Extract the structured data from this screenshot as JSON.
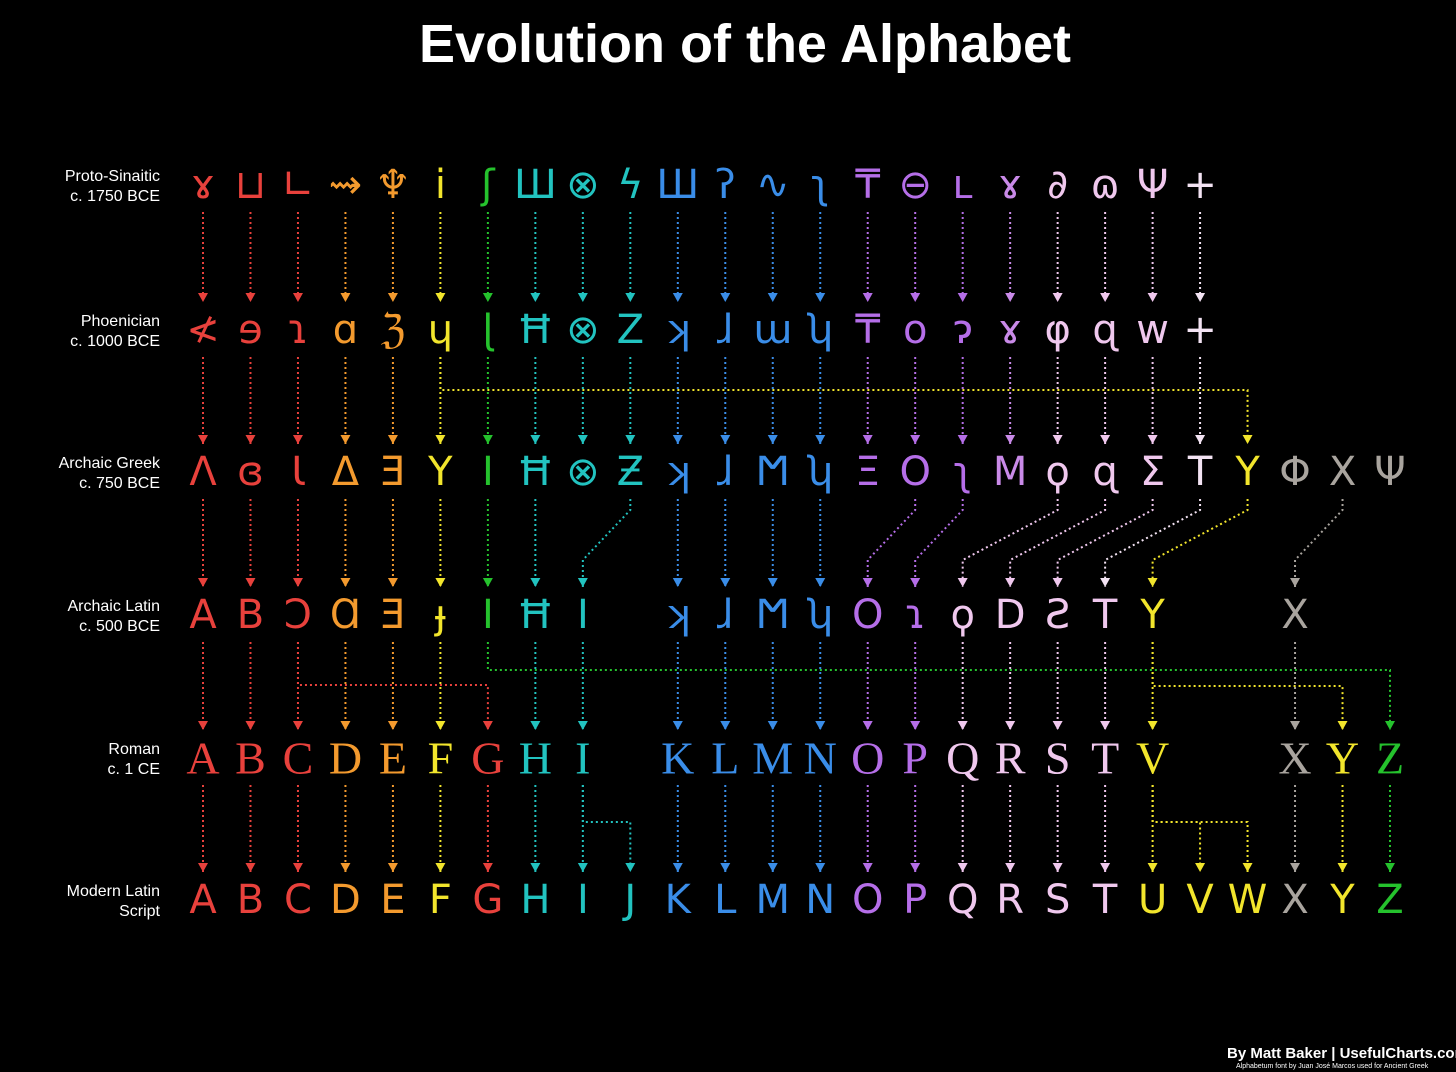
{
  "title": "Evolution of the Alphabet",
  "rows": [
    {
      "label": "Proto-Sinaitic",
      "period": "c. 1750 BCE",
      "glyphs": [
        "ɤ",
        "⊔",
        "∟",
        "⇝",
        "♆",
        "ⅰ",
        "ʃ",
        "Ш",
        "⊗",
        "ϟ",
        "Ш",
        "ʔ",
        "∿",
        "ʅ",
        "₸",
        "⊖",
        "ʟ",
        "ɤ",
        "∂",
        "ɷ",
        "Ψ",
        "+",
        null,
        null,
        null,
        null
      ],
      "colors": [
        "#e8413c",
        "#e8413c",
        "#e8413c",
        "#f39a2e",
        "#f39a2e",
        "#f2e52c",
        "#25c22d",
        "#22c3c0",
        "#22c3c0",
        "#22c3c0",
        "#3a8de8",
        "#3a8de8",
        "#3a8de8",
        "#3a8de8",
        "#b56ee8",
        "#b56ee8",
        "#b56ee8",
        "#c98ae8",
        "#f0c8ee",
        "#f0c8ee",
        "#f0c8ee",
        "#f3e3f3",
        null,
        null,
        null,
        null
      ]
    },
    {
      "label": "Phoenician",
      "period": "c. 1000 BCE",
      "glyphs": [
        "≮",
        "ɘ",
        "ɿ",
        "ɑ",
        "ℨ",
        "ɥ",
        "ɭ",
        "Ħ",
        "⊗",
        "Z",
        "ʞ",
        "ɺ",
        "ɯ",
        "ʮ",
        "₸",
        "o",
        "ɂ",
        "ɤ",
        "φ",
        "ɋ",
        "w",
        "+",
        null,
        null,
        null,
        null
      ],
      "colors": [
        "#e8413c",
        "#e8413c",
        "#e8413c",
        "#f39a2e",
        "#f39a2e",
        "#f2e52c",
        "#25c22d",
        "#22c3c0",
        "#22c3c0",
        "#22c3c0",
        "#3a8de8",
        "#3a8de8",
        "#3a8de8",
        "#3a8de8",
        "#b56ee8",
        "#b56ee8",
        "#b56ee8",
        "#c98ae8",
        "#f0c8ee",
        "#f0c8ee",
        "#f0c8ee",
        "#f3e3f3",
        null,
        null,
        null,
        null
      ]
    },
    {
      "label": "Archaic Greek",
      "period": "c. 750 BCE",
      "glyphs": [
        "Λ",
        "ɞ",
        "Ɩ",
        "Δ",
        "Ǝ",
        "Υ",
        "Ι",
        "Ħ",
        "⊗",
        "Ƶ",
        "ʞ",
        "ɺ",
        "Ϻ",
        "ʮ",
        "Ξ",
        "O",
        "ʅ",
        "Μ",
        "ϙ",
        "ɋ",
        "Σ",
        "Τ",
        "Υ",
        "Φ",
        "Χ",
        "Ψ"
      ],
      "colors": [
        "#e8413c",
        "#e8413c",
        "#e8413c",
        "#f39a2e",
        "#f39a2e",
        "#f2e52c",
        "#25c22d",
        "#22c3c0",
        "#22c3c0",
        "#22c3c0",
        "#3a8de8",
        "#3a8de8",
        "#3a8de8",
        "#3a8de8",
        "#b56ee8",
        "#b56ee8",
        "#b56ee8",
        "#c98ae8",
        "#f0c8ee",
        "#f0c8ee",
        "#f0c8ee",
        "#f3e3f3",
        "#f2e52c",
        "#a9a49e",
        "#a9a49e",
        "#a9a49e"
      ]
    },
    {
      "label": "Archaic Latin",
      "period": "c. 500 BCE",
      "glyphs": [
        "A",
        "B",
        "Ɔ",
        "Ɑ",
        "Ǝ",
        "ɟ",
        "I",
        "Ħ",
        "I",
        null,
        "ʞ",
        "ɺ",
        "Ϻ",
        "ʮ",
        "O",
        "ɿ",
        "ϙ",
        "D",
        "Ƨ",
        "T",
        "Y",
        null,
        null,
        "X",
        null,
        null
      ],
      "colors": [
        "#e8413c",
        "#e8413c",
        "#e8413c",
        "#f39a2e",
        "#f39a2e",
        "#f2e52c",
        "#25c22d",
        "#22c3c0",
        "#22c3c0",
        null,
        "#3a8de8",
        "#3a8de8",
        "#3a8de8",
        "#3a8de8",
        "#b56ee8",
        "#b56ee8",
        "#f0c8ee",
        "#f0c8ee",
        "#f0c8ee",
        "#f0c8ee",
        "#f2e52c",
        null,
        null,
        "#a9a49e",
        null,
        null
      ]
    },
    {
      "label": "Roman",
      "period": "c. 1 CE",
      "glyphs": [
        "A",
        "B",
        "C",
        "D",
        "E",
        "F",
        "G",
        "H",
        "I",
        null,
        "K",
        "L",
        "M",
        "N",
        "O",
        "P",
        "Q",
        "R",
        "S",
        "T",
        "V",
        null,
        null,
        "X",
        "Y",
        "Z"
      ],
      "colors": [
        "#e8413c",
        "#e8413c",
        "#e8413c",
        "#f39a2e",
        "#f39a2e",
        "#f2e52c",
        "#e8413c",
        "#22c3c0",
        "#22c3c0",
        null,
        "#3a8de8",
        "#3a8de8",
        "#3a8de8",
        "#3a8de8",
        "#b56ee8",
        "#b56ee8",
        "#f0c8ee",
        "#f0c8ee",
        "#f0c8ee",
        "#f0c8ee",
        "#f2e52c",
        null,
        null,
        "#a9a49e",
        "#f2e52c",
        "#25c22d"
      ]
    },
    {
      "label": "Modern Latin",
      "period": "Script",
      "glyphs": [
        "A",
        "B",
        "C",
        "D",
        "E",
        "F",
        "G",
        "H",
        "I",
        "J",
        "K",
        "L",
        "M",
        "N",
        "O",
        "P",
        "Q",
        "R",
        "S",
        "T",
        "U",
        "V",
        "W",
        "X",
        "Y",
        "Z"
      ],
      "colors": [
        "#e8413c",
        "#e8413c",
        "#e8413c",
        "#f39a2e",
        "#f39a2e",
        "#f2e52c",
        "#e8413c",
        "#22c3c0",
        "#22c3c0",
        "#22c3c0",
        "#3a8de8",
        "#3a8de8",
        "#3a8de8",
        "#3a8de8",
        "#b56ee8",
        "#b56ee8",
        "#f0c8ee",
        "#f0c8ee",
        "#f0c8ee",
        "#f0c8ee",
        "#f2e52c",
        "#f2e52c",
        "#f2e52c",
        "#a9a49e",
        "#f2e52c",
        "#25c22d"
      ]
    }
  ],
  "credit": "By Matt Baker | UsefulCharts.com",
  "font_note": "Alphabetum font by Juan José Marcos used for Ancient Greek"
}
